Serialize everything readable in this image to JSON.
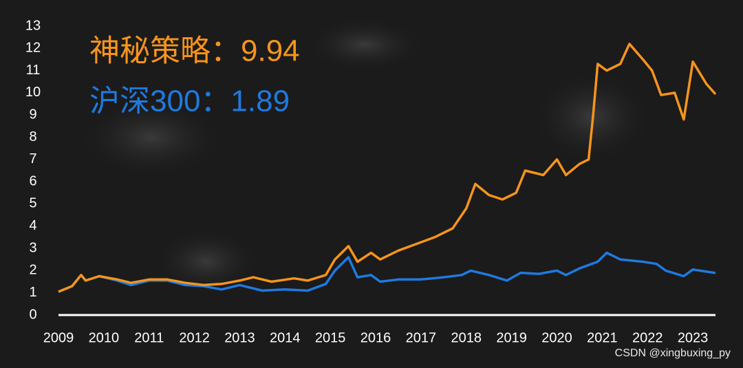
{
  "chart_data": {
    "type": "line",
    "annotations": [
      "神秘策略：9.94",
      "沪深300：1.89"
    ],
    "watermark": "CSDN @xingbuxing_py",
    "xlim": [
      2009,
      2023.5
    ],
    "xticks": [
      2009,
      2010,
      2011,
      2012,
      2013,
      2014,
      2015,
      2016,
      2017,
      2018,
      2019,
      2020,
      2021,
      2022,
      2023
    ],
    "ylim": [
      0,
      13
    ],
    "yticks": [
      0,
      1,
      2,
      3,
      4,
      5,
      6,
      7,
      8,
      9,
      10,
      11,
      12,
      13
    ],
    "grid": false,
    "series": [
      {
        "color": "#f7941d",
        "x": [
          2009.0,
          2009.3,
          2009.5,
          2009.6,
          2009.9,
          2010.3,
          2010.6,
          2011.0,
          2011.4,
          2011.8,
          2012.2,
          2012.6,
          2013.0,
          2013.3,
          2013.7,
          2014.2,
          2014.5,
          2014.9,
          2015.1,
          2015.4,
          2015.6,
          2015.9,
          2016.1,
          2016.5,
          2016.9,
          2017.3,
          2017.7,
          2018.0,
          2018.2,
          2018.5,
          2018.8,
          2019.1,
          2019.3,
          2019.7,
          2020.0,
          2020.2,
          2020.5,
          2020.7,
          2020.8,
          2020.9,
          2021.1,
          2021.4,
          2021.6,
          2021.9,
          2022.1,
          2022.3,
          2022.6,
          2022.8,
          2023.0,
          2023.3,
          2023.5
        ],
        "values": [
          1.05,
          1.3,
          1.8,
          1.55,
          1.75,
          1.6,
          1.45,
          1.6,
          1.6,
          1.45,
          1.35,
          1.4,
          1.55,
          1.7,
          1.5,
          1.65,
          1.55,
          1.8,
          2.5,
          3.1,
          2.4,
          2.8,
          2.5,
          2.9,
          3.2,
          3.5,
          3.9,
          4.8,
          5.9,
          5.4,
          5.2,
          5.5,
          6.5,
          6.3,
          7.0,
          6.3,
          6.8,
          7.0,
          9.0,
          11.3,
          11.0,
          11.3,
          12.2,
          11.5,
          11.0,
          9.9,
          10.0,
          8.8,
          11.4,
          10.4,
          9.94
        ]
      },
      {
        "color": "#1f7ae0",
        "x": [
          2009.0,
          2009.3,
          2009.5,
          2009.6,
          2009.9,
          2010.3,
          2010.6,
          2011.0,
          2011.4,
          2011.8,
          2012.2,
          2012.6,
          2013.0,
          2013.5,
          2014.0,
          2014.5,
          2014.9,
          2015.1,
          2015.4,
          2015.6,
          2015.9,
          2016.1,
          2016.5,
          2017.0,
          2017.5,
          2017.9,
          2018.1,
          2018.5,
          2018.9,
          2019.2,
          2019.6,
          2020.0,
          2020.2,
          2020.5,
          2020.9,
          2021.1,
          2021.4,
          2021.9,
          2022.2,
          2022.4,
          2022.8,
          2023.0,
          2023.5
        ],
        "values": [
          1.05,
          1.3,
          1.8,
          1.55,
          1.75,
          1.55,
          1.35,
          1.55,
          1.55,
          1.35,
          1.3,
          1.15,
          1.35,
          1.1,
          1.15,
          1.1,
          1.4,
          2.0,
          2.6,
          1.7,
          1.8,
          1.5,
          1.6,
          1.6,
          1.7,
          1.8,
          2.0,
          1.8,
          1.55,
          1.9,
          1.85,
          2.0,
          1.8,
          2.1,
          2.4,
          2.8,
          2.5,
          2.4,
          2.3,
          2.0,
          1.75,
          2.05,
          1.89
        ]
      }
    ]
  }
}
